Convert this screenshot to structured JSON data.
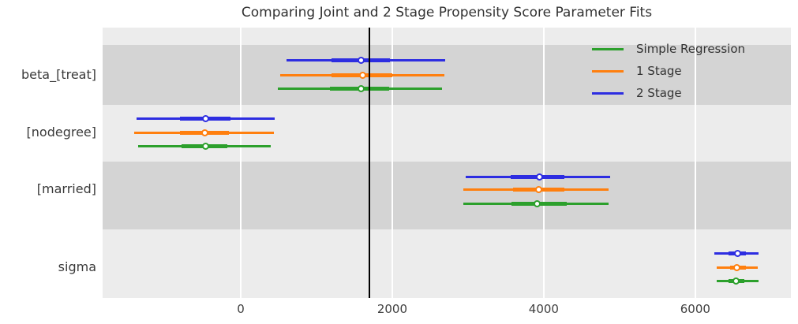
{
  "chart_data": {
    "type": "forest",
    "title": "Comparing Joint and 2 Stage Propensity Score Parameter Fits",
    "parameters": [
      "beta_[treat]",
      "[nodegree]",
      "[married]",
      "sigma"
    ],
    "x_ticks": [
      0,
      2000,
      4000,
      6000
    ],
    "x_tick_labels": [
      "0",
      "2000",
      "4000",
      "6000"
    ],
    "x_range": [
      -1823,
      7262
    ],
    "reference_line_x": 1700,
    "grid": true,
    "legend": {
      "position": "upper right",
      "entries": [
        "Simple Regression",
        "1 Stage",
        "2 Stage"
      ]
    },
    "series": [
      {
        "name": "Simple Regression",
        "color": "#2ca02c",
        "estimates": [
          {
            "parameter": "beta_[treat]",
            "lo": 490,
            "q1": 1180,
            "mean": 1590,
            "q3": 1960,
            "hi": 2660
          },
          {
            "parameter": "[nodegree]",
            "lo": -1355,
            "q1": -780,
            "mean": -460,
            "q3": -175,
            "hi": 400
          },
          {
            "parameter": "[married]",
            "lo": 2935,
            "q1": 3570,
            "mean": 3915,
            "q3": 4300,
            "hi": 4860
          },
          {
            "parameter": "sigma",
            "lo": 6285,
            "q1": 6440,
            "mean": 6540,
            "q3": 6650,
            "hi": 6840
          }
        ]
      },
      {
        "name": "1 Stage",
        "color": "#ff7f0e",
        "estimates": [
          {
            "parameter": "beta_[treat]",
            "lo": 525,
            "q1": 1200,
            "mean": 1615,
            "q3": 2000,
            "hi": 2690
          },
          {
            "parameter": "[nodegree]",
            "lo": -1405,
            "q1": -800,
            "mean": -475,
            "q3": -155,
            "hi": 435
          },
          {
            "parameter": "[married]",
            "lo": 2935,
            "q1": 3595,
            "mean": 3930,
            "q3": 4270,
            "hi": 4860
          },
          {
            "parameter": "sigma",
            "lo": 6285,
            "q1": 6460,
            "mean": 6545,
            "q3": 6665,
            "hi": 6825
          }
        ]
      },
      {
        "name": "2 Stage",
        "color": "#2d2de1",
        "estimates": [
          {
            "parameter": "beta_[treat]",
            "lo": 600,
            "q1": 1195,
            "mean": 1585,
            "q3": 1965,
            "hi": 2700
          },
          {
            "parameter": "[nodegree]",
            "lo": -1380,
            "q1": -800,
            "mean": -460,
            "q3": -140,
            "hi": 450
          },
          {
            "parameter": "[married]",
            "lo": 2970,
            "q1": 3560,
            "mean": 3940,
            "q3": 4270,
            "hi": 4880
          },
          {
            "parameter": "sigma",
            "lo": 6250,
            "q1": 6440,
            "mean": 6555,
            "q3": 6665,
            "hi": 6840
          }
        ]
      }
    ],
    "colors": {
      "band_dark": "#d4d4d4",
      "band_light": "#ececec",
      "gridline": "#ffffff",
      "reference_line": "#000000",
      "text": "#3a3a3a"
    }
  }
}
